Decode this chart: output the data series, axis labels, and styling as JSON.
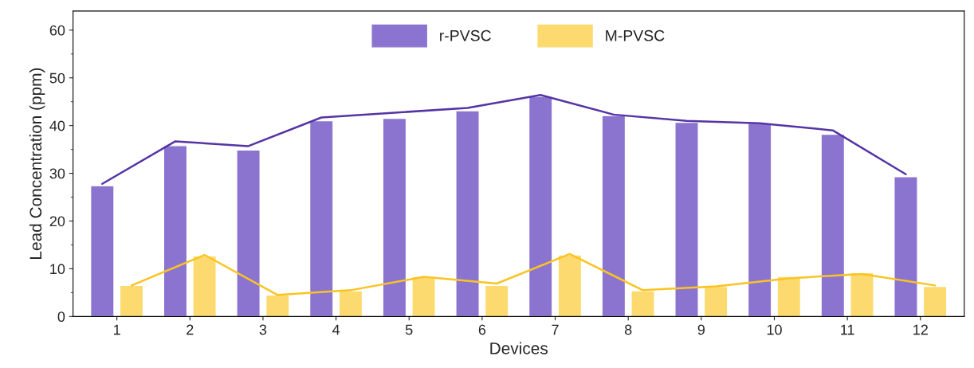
{
  "chart_data": {
    "type": "bar",
    "xlabel": "Devices",
    "ylabel": "Lead Concentration (ppm)",
    "categories": [
      "1",
      "2",
      "3",
      "4",
      "5",
      "6",
      "7",
      "8",
      "9",
      "10",
      "11",
      "12"
    ],
    "series": [
      {
        "name": "r-PVSC",
        "color": "#8b74cf",
        "values": [
          27.4,
          35.8,
          34.9,
          41.0,
          41.5,
          43.1,
          46.1,
          42.1,
          40.7,
          40.5,
          38.2,
          29.3
        ]
      },
      {
        "name": "M-PVSC",
        "color": "#fdda70",
        "values": [
          6.5,
          12.7,
          4.5,
          5.4,
          8.4,
          6.5,
          12.9,
          5.4,
          6.3,
          8.4,
          9.2,
          6.3
        ]
      },
      {
        "type": "line",
        "color": "#5534a5",
        "values": [
          27.8,
          36.7,
          35.7,
          41.7,
          42.7,
          43.7,
          46.4,
          42.3,
          41.0,
          40.5,
          39.0,
          29.8
        ]
      },
      {
        "type": "line",
        "color": "#f9c423",
        "values": [
          6.5,
          12.9,
          4.5,
          5.5,
          8.3,
          6.9,
          13.1,
          5.5,
          6.3,
          8.0,
          8.9,
          6.5
        ]
      }
    ],
    "ylim": [
      0,
      64
    ],
    "yticks": [
      0,
      10,
      20,
      30,
      40,
      50,
      60
    ],
    "grid": false,
    "legend": "top",
    "marker": "none",
    "line_style": "solid"
  }
}
